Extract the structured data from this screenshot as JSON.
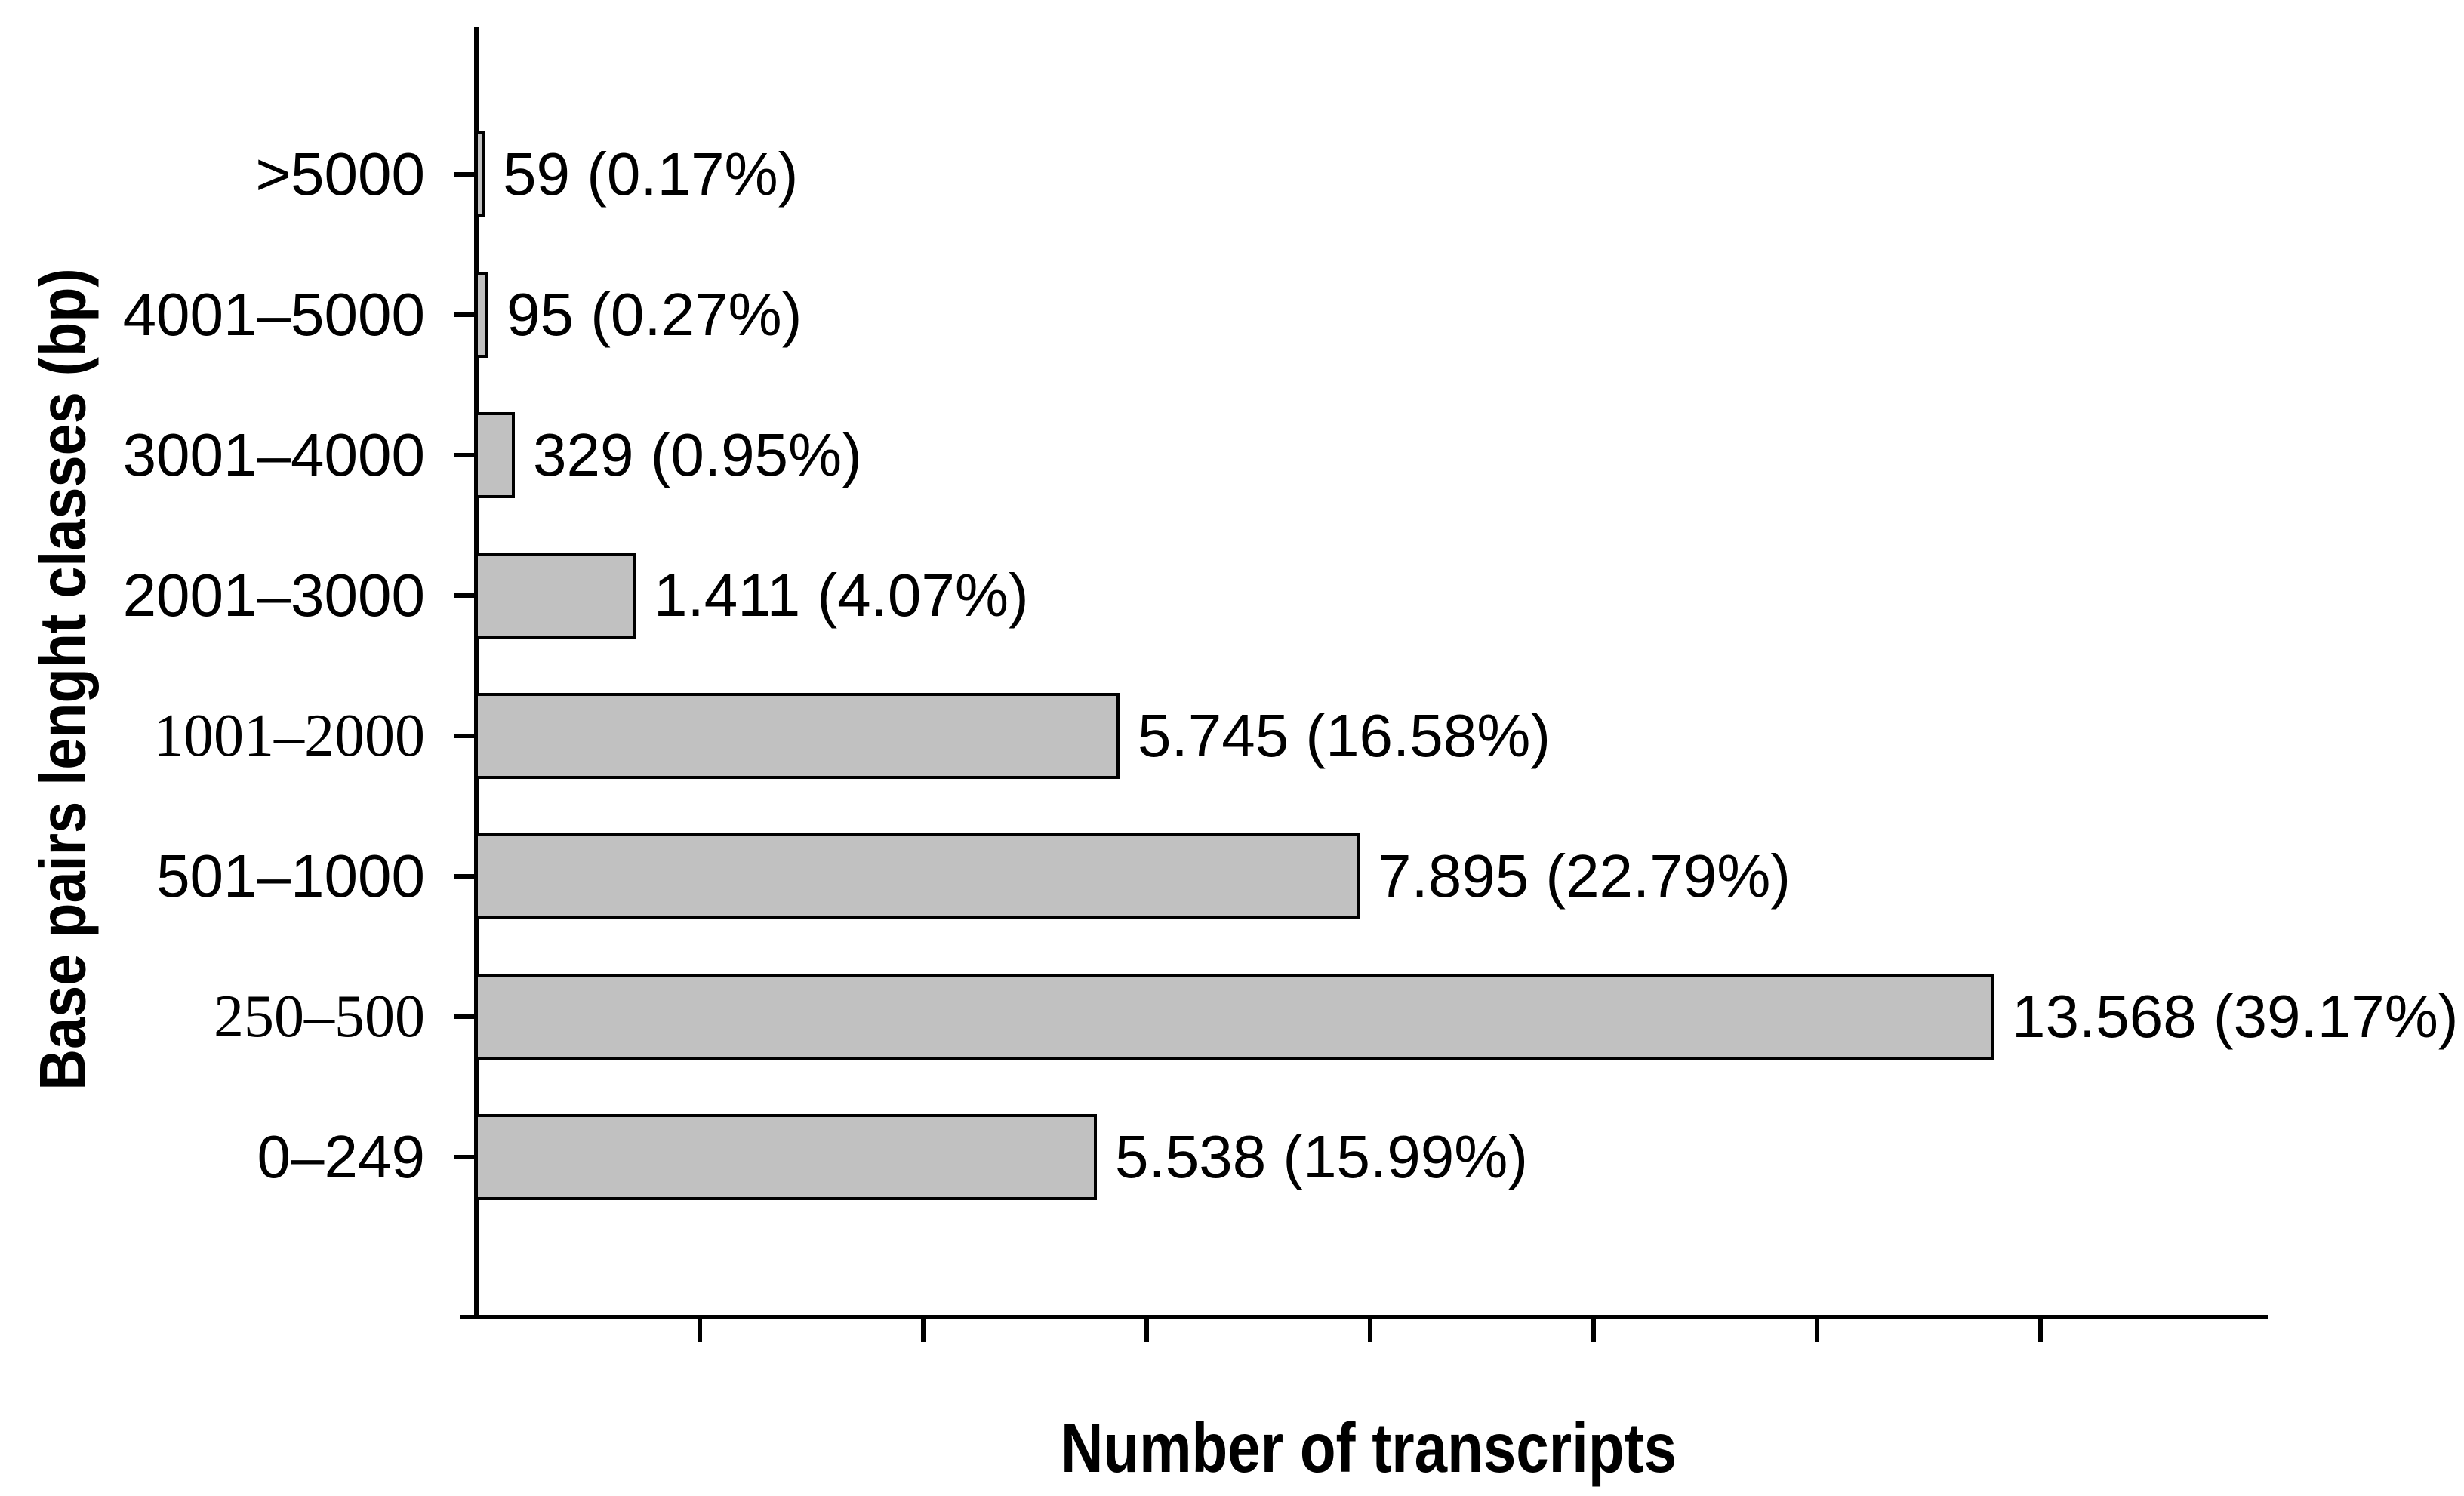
{
  "chart_data": {
    "type": "bar",
    "orientation": "horizontal",
    "title": "",
    "xlabel": "Number of transcripts",
    "ylabel": "Base pairs lenght classes (bp)",
    "xlim": [
      0,
      16000
    ],
    "x_ticks": [
      2000,
      4000,
      6000,
      8000,
      10000,
      12000,
      14000
    ],
    "x_tick_labels": [],
    "y_tick_labels_visible": true,
    "grid": false,
    "legend": "none",
    "bar_color": "#c1c1c1",
    "bar_border_color": "#000000",
    "background_color": "#ffffff",
    "categories": [
      ">5000",
      "4001–5000",
      "3001–4000",
      "2001–3000",
      "1001–2000",
      "501–1000",
      "250–500",
      "0–249"
    ],
    "values": [
      59,
      95,
      329,
      1411,
      5745,
      7895,
      13568,
      5538
    ],
    "bars": [
      {
        "category": ">5000",
        "value": 59,
        "label": "59 (0.17%)",
        "tick_font": "sans"
      },
      {
        "category": "4001–5000",
        "value": 95,
        "label": "95 (0.27%)",
        "tick_font": "sans"
      },
      {
        "category": "3001–4000",
        "value": 329,
        "label": "329 (0.95%)",
        "tick_font": "sans"
      },
      {
        "category": "2001–3000",
        "value": 1411,
        "label": "1.411 (4.07%)",
        "tick_font": "sans"
      },
      {
        "category": "1001–2000",
        "value": 5745,
        "label": "5.745 (16.58%)",
        "tick_font": "serif"
      },
      {
        "category": "501–1000",
        "value": 7895,
        "label": "7.895 (22.79%)",
        "tick_font": "sans"
      },
      {
        "category": "250–500",
        "value": 13568,
        "label": "13.568 (39.17%)",
        "tick_font": "serif"
      },
      {
        "category": "0–249",
        "value": 5538,
        "label": "5.538 (15.99%)",
        "tick_font": "sans"
      }
    ]
  }
}
